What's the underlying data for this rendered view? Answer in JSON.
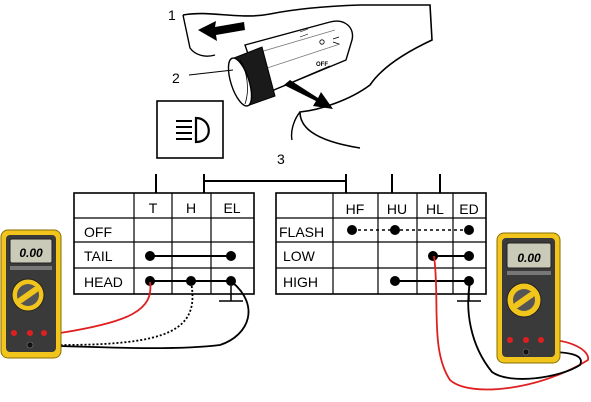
{
  "callouts": {
    "one": "1",
    "two": "2",
    "three": "3"
  },
  "switch_label_off": "OFF",
  "left_table": {
    "columns": [
      "T",
      "H",
      "EL"
    ],
    "rows": [
      "OFF",
      "TAIL",
      "HEAD"
    ]
  },
  "right_table": {
    "columns": [
      "HF",
      "HU",
      "HL",
      "ED"
    ],
    "rows": [
      "FLASH",
      "LOW",
      "HIGH"
    ]
  },
  "meters": {
    "left_display": "0.00",
    "right_display": "0.00"
  },
  "colors": {
    "meter_body": "#f2c51c",
    "meter_face": "#3a3a3a",
    "lead_red": "#e02020",
    "lead_black": "#111111"
  },
  "icons": [
    "headlight-icon",
    "arrow-up-left-icon",
    "arrow-down-right-icon",
    "multimeter-icon"
  ]
}
